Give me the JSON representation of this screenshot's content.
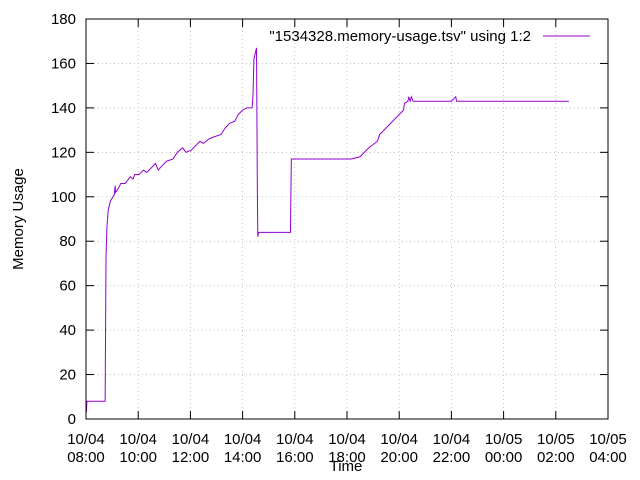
{
  "chart_data": {
    "type": "line",
    "title": "",
    "xlabel": "Time",
    "ylabel": "Memory Usage",
    "x_is_time": true,
    "x_range": [
      "2015-10-04 08:00",
      "2015-10-05 04:00"
    ],
    "x_ticks": [
      {
        "time": "2015-10-04 08:00",
        "label_date": "10/04",
        "label_time": "08:00"
      },
      {
        "time": "2015-10-04 10:00",
        "label_date": "10/04",
        "label_time": "10:00"
      },
      {
        "time": "2015-10-04 12:00",
        "label_date": "10/04",
        "label_time": "12:00"
      },
      {
        "time": "2015-10-04 14:00",
        "label_date": "10/04",
        "label_time": "14:00"
      },
      {
        "time": "2015-10-04 16:00",
        "label_date": "10/04",
        "label_time": "16:00"
      },
      {
        "time": "2015-10-04 18:00",
        "label_date": "10/04",
        "label_time": "18:00"
      },
      {
        "time": "2015-10-04 20:00",
        "label_date": "10/04",
        "label_time": "20:00"
      },
      {
        "time": "2015-10-04 22:00",
        "label_date": "10/04",
        "label_time": "22:00"
      },
      {
        "time": "2015-10-05 00:00",
        "label_date": "10/05",
        "label_time": "00:00"
      },
      {
        "time": "2015-10-05 02:00",
        "label_date": "10/05",
        "label_time": "02:00"
      },
      {
        "time": "2015-10-05 04:00",
        "label_date": "10/05",
        "label_time": "04:00"
      }
    ],
    "ylim": [
      0,
      180
    ],
    "y_ticks": [
      0,
      20,
      40,
      60,
      80,
      100,
      120,
      140,
      160,
      180
    ],
    "grid": true,
    "legend_position": "top-right",
    "series": [
      {
        "name": "\"1534328.memory-usage.tsv\" using 1:2",
        "color": "#9400d3",
        "points": [
          [
            "2015-10-04 08:00",
            8
          ],
          [
            "2015-10-04 08:01",
            3
          ],
          [
            "2015-10-04 08:02",
            8
          ],
          [
            "2015-10-04 08:30",
            8
          ],
          [
            "2015-10-04 08:44",
            8
          ],
          [
            "2015-10-04 08:46",
            73
          ],
          [
            "2015-10-04 08:48",
            86
          ],
          [
            "2015-10-04 08:51",
            94
          ],
          [
            "2015-10-04 08:56",
            98
          ],
          [
            "2015-10-04 09:02",
            100
          ],
          [
            "2015-10-04 09:05",
            101
          ],
          [
            "2015-10-04 09:07",
            105
          ],
          [
            "2015-10-04 09:08",
            102
          ],
          [
            "2015-10-04 09:15",
            104
          ],
          [
            "2015-10-04 09:20",
            106
          ],
          [
            "2015-10-04 09:30",
            106
          ],
          [
            "2015-10-04 09:42",
            109
          ],
          [
            "2015-10-04 09:48",
            108
          ],
          [
            "2015-10-04 09:52",
            110
          ],
          [
            "2015-10-04 10:02",
            110
          ],
          [
            "2015-10-04 10:12",
            112
          ],
          [
            "2015-10-04 10:20",
            111
          ],
          [
            "2015-10-04 10:30",
            113
          ],
          [
            "2015-10-04 10:40",
            115
          ],
          [
            "2015-10-04 10:46",
            112
          ],
          [
            "2015-10-04 10:55",
            114
          ],
          [
            "2015-10-04 11:05",
            116
          ],
          [
            "2015-10-04 11:20",
            117
          ],
          [
            "2015-10-04 11:30",
            120
          ],
          [
            "2015-10-04 11:42",
            122
          ],
          [
            "2015-10-04 11:50",
            120
          ],
          [
            "2015-10-04 12:02",
            121
          ],
          [
            "2015-10-04 12:12",
            123
          ],
          [
            "2015-10-04 12:22",
            125
          ],
          [
            "2015-10-04 12:30",
            124
          ],
          [
            "2015-10-04 12:42",
            126
          ],
          [
            "2015-10-04 12:55",
            127
          ],
          [
            "2015-10-04 13:10",
            128
          ],
          [
            "2015-10-04 13:20",
            131
          ],
          [
            "2015-10-04 13:30",
            133
          ],
          [
            "2015-10-04 13:42",
            134
          ],
          [
            "2015-10-04 13:50",
            137
          ],
          [
            "2015-10-04 14:00",
            139
          ],
          [
            "2015-10-04 14:10",
            140
          ],
          [
            "2015-10-04 14:22",
            140
          ],
          [
            "2015-10-04 14:24",
            146
          ],
          [
            "2015-10-04 14:26",
            162
          ],
          [
            "2015-10-04 14:32",
            167
          ],
          [
            "2015-10-04 14:34",
            100
          ],
          [
            "2015-10-04 14:35",
            82
          ],
          [
            "2015-10-04 14:37",
            84
          ],
          [
            "2015-10-04 15:00",
            84
          ],
          [
            "2015-10-04 15:30",
            84
          ],
          [
            "2015-10-04 15:50",
            84
          ],
          [
            "2015-10-04 15:52",
            117
          ],
          [
            "2015-10-04 16:20",
            117
          ],
          [
            "2015-10-04 17:00",
            117
          ],
          [
            "2015-10-04 17:40",
            117
          ],
          [
            "2015-10-04 18:10",
            117
          ],
          [
            "2015-10-04 18:30",
            118
          ],
          [
            "2015-10-04 18:50",
            122
          ],
          [
            "2015-10-04 19:10",
            125
          ],
          [
            "2015-10-04 19:15",
            128
          ],
          [
            "2015-10-04 19:30",
            131
          ],
          [
            "2015-10-04 19:50",
            135
          ],
          [
            "2015-10-04 20:10",
            139
          ],
          [
            "2015-10-04 20:12",
            142
          ],
          [
            "2015-10-04 20:20",
            143
          ],
          [
            "2015-10-04 20:22",
            145
          ],
          [
            "2015-10-04 20:25",
            143
          ],
          [
            "2015-10-04 20:28",
            145
          ],
          [
            "2015-10-04 20:32",
            143
          ],
          [
            "2015-10-04 21:00",
            143
          ],
          [
            "2015-10-04 22:00",
            143
          ],
          [
            "2015-10-04 22:10",
            145
          ],
          [
            "2015-10-04 22:12",
            143
          ],
          [
            "2015-10-04 23:00",
            143
          ],
          [
            "2015-10-05 00:00",
            143
          ],
          [
            "2015-10-05 01:00",
            143
          ],
          [
            "2015-10-05 02:30",
            143
          ]
        ]
      }
    ]
  }
}
